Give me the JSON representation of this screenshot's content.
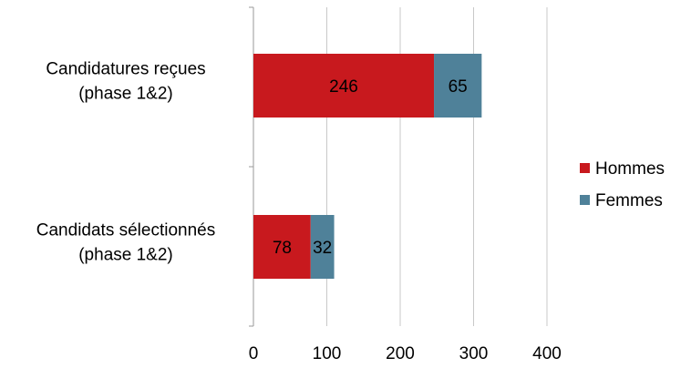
{
  "chart_data": {
    "type": "bar",
    "orientation": "horizontal",
    "stacked": true,
    "categories": [
      [
        "Candidatures reçues",
        "(phase 1&2)"
      ],
      [
        "Candidats sélectionnés",
        "(phase 1&2)"
      ]
    ],
    "series": [
      {
        "name": "Hommes",
        "values": [
          246,
          78
        ],
        "color": "#c8191e"
      },
      {
        "name": "Femmes",
        "values": [
          65,
          32
        ],
        "color": "#4f8199"
      }
    ],
    "xlim": [
      0,
      400
    ],
    "xticks": [
      0,
      100,
      200,
      300,
      400
    ],
    "grid": "vertical",
    "legend": "right",
    "title": "",
    "xlabel": "",
    "ylabel": ""
  }
}
